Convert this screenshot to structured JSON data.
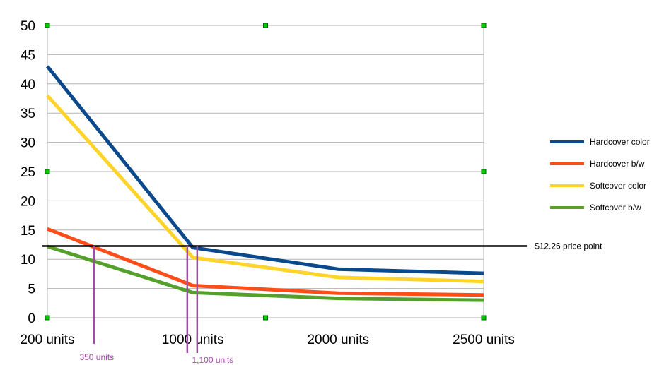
{
  "chart_data": {
    "type": "line",
    "categories": [
      "200 units",
      "1000 units",
      "2000 units",
      "2500 units"
    ],
    "ylim": [
      0,
      50
    ],
    "yticks": [
      0,
      5,
      10,
      15,
      20,
      25,
      30,
      35,
      40,
      45,
      50
    ],
    "grid": true,
    "legend_position": "right",
    "series": [
      {
        "name": "Hardcover color",
        "color": "#0a4a8c",
        "values": [
          43,
          12,
          8.3,
          7.6
        ]
      },
      {
        "name": "Hardcover b/w",
        "color": "#ff4d1a",
        "values": [
          15.2,
          5.5,
          4.2,
          3.9
        ]
      },
      {
        "name": "Softcover color",
        "color": "#ffd42a",
        "values": [
          38,
          10.3,
          6.9,
          6.2
        ]
      },
      {
        "name": "Softcover b/w",
        "color": "#55a02a",
        "values": [
          12.2,
          4.3,
          3.3,
          3
        ]
      }
    ],
    "reference_line": {
      "value": 12.26,
      "label": "$12.26 price point",
      "color": "#000000"
    },
    "markers": [
      {
        "label": "350 units",
        "x_position": 0.32,
        "color": "#a04ba6"
      },
      {
        "label": "1,100 units",
        "x_position": 1.03,
        "color": "#a04ba6"
      }
    ]
  }
}
